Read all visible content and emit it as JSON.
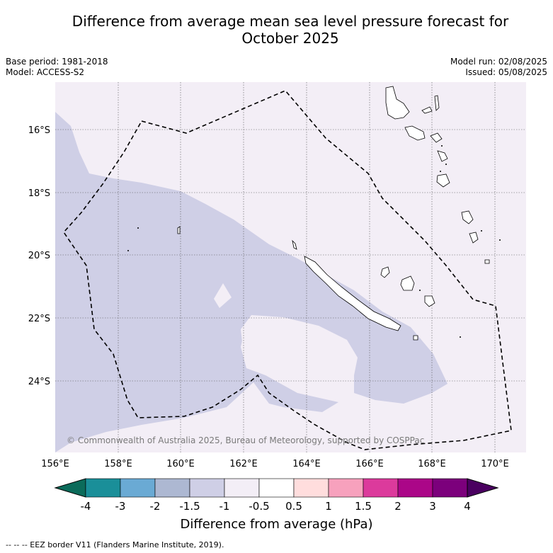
{
  "title_line1": "Difference from average mean sea level pressure forecast for",
  "title_line2": "October 2025",
  "base_period": "Base period: 1981-2018",
  "model": "Model: ACCESS-S2",
  "model_run": "Model run: 02/08/2025",
  "issued": "Issued: 05/08/2025",
  "copyright": "© Commonwealth of Australia 2025, Bureau of Meteorology, supported by COSPPac",
  "lon_ticks": [
    "156°E",
    "158°E",
    "160°E",
    "162°E",
    "164°E",
    "166°E",
    "168°E",
    "170°E"
  ],
  "lat_ticks": [
    "16°S",
    "18°S",
    "20°S",
    "22°S",
    "24°S"
  ],
  "colorbar": {
    "title": "Difference from average (hPa)",
    "tick_labels": [
      "-4",
      "-3",
      "-2",
      "-1.5",
      "-1",
      "-0.5",
      "0.5",
      "1",
      "1.5",
      "2",
      "3",
      "4"
    ],
    "colors": [
      "#1a8f99",
      "#6aaad4",
      "#adb8d2",
      "#cfcfe6",
      "#f3eef6",
      "#ffffff",
      "#ffdddd",
      "#f7a1bd",
      "#dc3a9c",
      "#ab0688",
      "#7c007c"
    ],
    "under_color": "#0b6b5a",
    "over_color": "#4a0060"
  },
  "footnote": "--  --  -- EEZ border V11 (Flanders Marine Institute, 2019).",
  "fill_colors": {
    "ocean_background": "#f3eef6",
    "anomaly_band": "#cfcfe6"
  }
}
